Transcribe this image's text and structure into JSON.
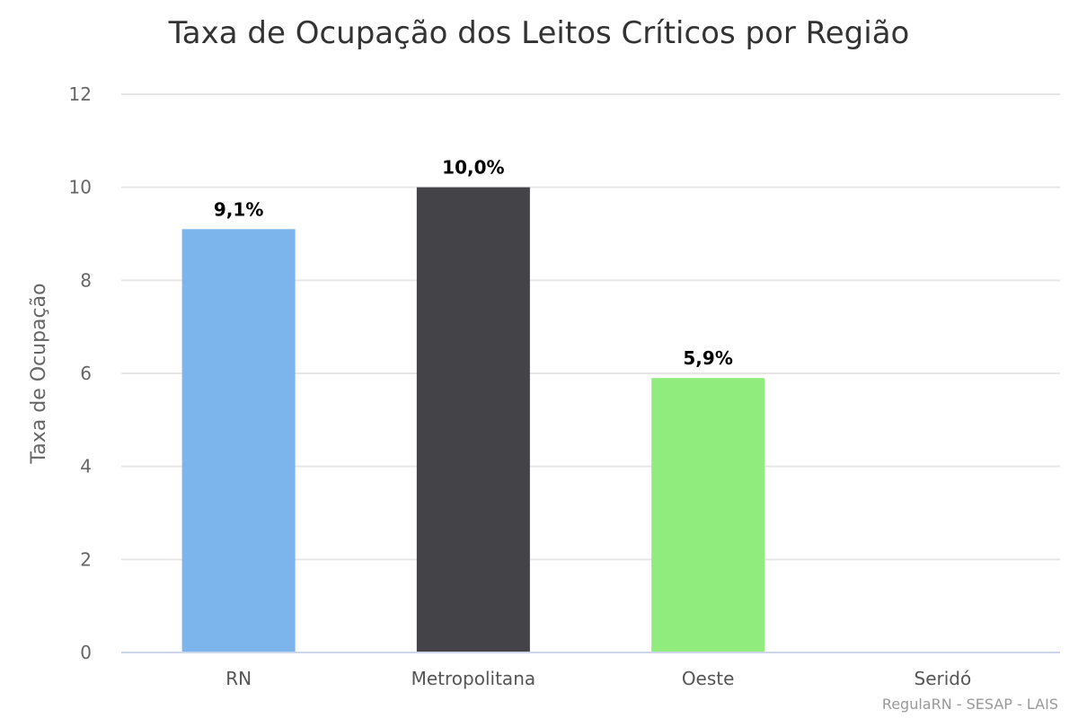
{
  "chart_data": {
    "type": "bar",
    "title": "Taxa de Ocupação dos Leitos Críticos por Região",
    "xlabel": "",
    "ylabel": "Taxa de Ocupação",
    "categories": [
      "RN",
      "Metropolitana",
      "Oeste",
      "Seridó"
    ],
    "values": [
      9.1,
      10.0,
      5.9,
      null
    ],
    "data_labels": [
      "9,1%",
      "10,0%",
      "5,9%",
      ""
    ],
    "bar_colors": [
      "#7cb5ec",
      "#434348",
      "#90ed7d",
      "#f7a35c"
    ],
    "ylim": [
      0,
      12
    ],
    "yticks": [
      0,
      2,
      4,
      6,
      8,
      10,
      12
    ],
    "grid": true,
    "legend": "none"
  },
  "credits": "RegulaRN - SESAP - LAIS"
}
